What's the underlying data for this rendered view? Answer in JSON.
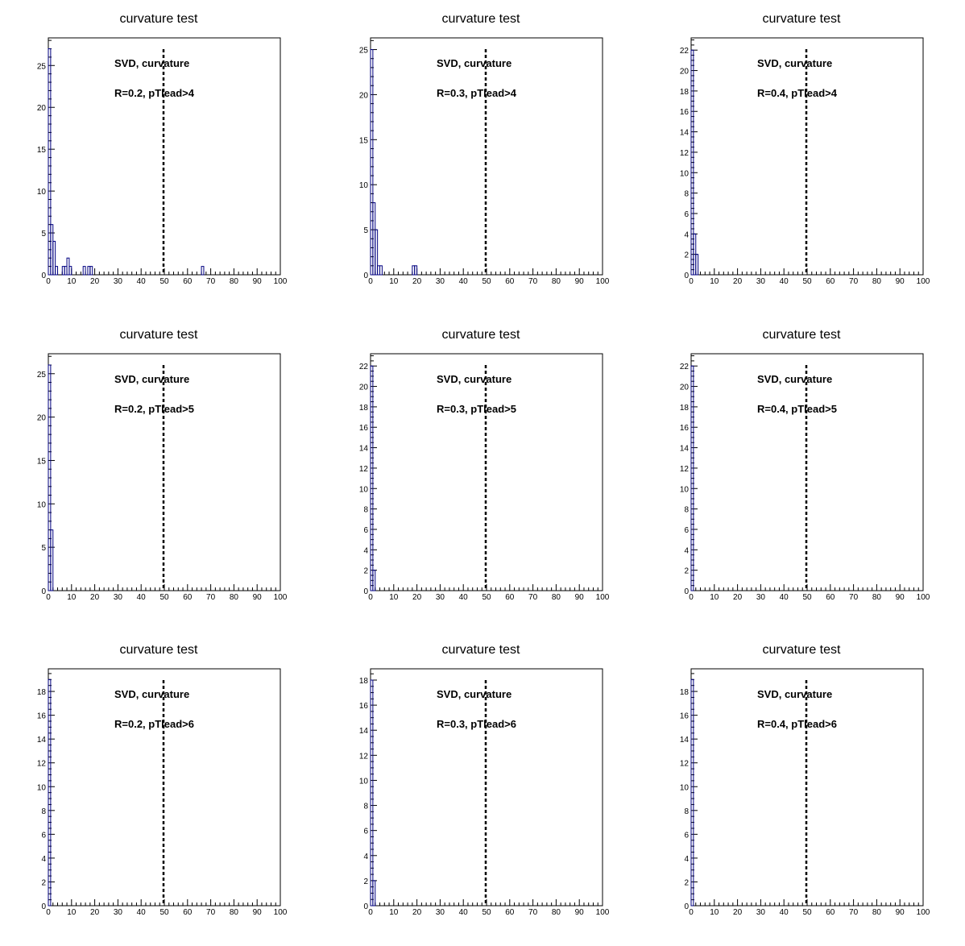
{
  "figure": {
    "panels": [
      {
        "title": "curvature test",
        "label1": "SVD, curvature",
        "label2": "R=0.2, pTlead>4"
      },
      {
        "title": "curvature test",
        "label1": "SVD, curvature",
        "label2": "R=0.3, pTlead>4"
      },
      {
        "title": "curvature test",
        "label1": "SVD, curvature",
        "label2": "R=0.4, pTlead>4"
      },
      {
        "title": "curvature test",
        "label1": "SVD, curvature",
        "label2": "R=0.2, pTlead>5"
      },
      {
        "title": "curvature test",
        "label1": "SVD, curvature",
        "label2": "R=0.3, pTlead>5"
      },
      {
        "title": "curvature test",
        "label1": "SVD, curvature",
        "label2": "R=0.4, pTlead>5"
      },
      {
        "title": "curvature test",
        "label1": "SVD, curvature",
        "label2": "R=0.2, pTlead>6"
      },
      {
        "title": "curvature test",
        "label1": "SVD, curvature",
        "label2": "R=0.3, pTlead>6"
      },
      {
        "title": "curvature test",
        "label1": "SVD, curvature",
        "label2": "R=0.4, pTlead>6"
      }
    ]
  },
  "chart_data": [
    {
      "type": "bar",
      "title": "curvature test",
      "annotations": [
        "SVD, curvature",
        "R=0.2, pTlead>4"
      ],
      "xlim": [
        0,
        100
      ],
      "ylim": [
        0,
        28.3
      ],
      "xticks": [
        0,
        10,
        20,
        30,
        40,
        50,
        60,
        70,
        80,
        90,
        100
      ],
      "yticks": [
        0,
        5,
        10,
        15,
        20,
        25
      ],
      "bin_width": 1,
      "bins": [
        [
          0,
          27
        ],
        [
          1,
          6
        ],
        [
          2,
          4
        ],
        [
          3,
          1
        ],
        [
          6,
          1
        ],
        [
          7,
          1
        ],
        [
          8,
          2
        ],
        [
          9,
          1
        ],
        [
          15,
          1
        ],
        [
          17,
          1
        ],
        [
          18,
          1
        ],
        [
          66,
          1
        ]
      ],
      "reference_line_x": 50,
      "color": "#000080"
    },
    {
      "type": "bar",
      "title": "curvature test",
      "annotations": [
        "SVD, curvature",
        "R=0.3, pTlead>4"
      ],
      "xlim": [
        0,
        100
      ],
      "ylim": [
        0,
        26.3
      ],
      "xticks": [
        0,
        10,
        20,
        30,
        40,
        50,
        60,
        70,
        80,
        90,
        100
      ],
      "yticks": [
        0,
        5,
        10,
        15,
        20,
        25
      ],
      "bin_width": 1,
      "bins": [
        [
          0,
          25
        ],
        [
          1,
          8
        ],
        [
          2,
          5
        ],
        [
          3,
          1
        ],
        [
          4,
          1
        ],
        [
          18,
          1
        ],
        [
          19,
          1
        ]
      ],
      "reference_line_x": 50,
      "color": "#000080"
    },
    {
      "type": "bar",
      "title": "curvature test",
      "annotations": [
        "SVD, curvature",
        "R=0.4, pTlead>4"
      ],
      "xlim": [
        0,
        100
      ],
      "ylim": [
        0,
        23.2
      ],
      "xticks": [
        0,
        10,
        20,
        30,
        40,
        50,
        60,
        70,
        80,
        90,
        100
      ],
      "yticks": [
        0,
        2,
        4,
        6,
        8,
        10,
        12,
        14,
        16,
        18,
        20,
        22
      ],
      "bin_width": 1,
      "bins": [
        [
          0,
          22
        ],
        [
          1,
          4
        ],
        [
          2,
          2
        ]
      ],
      "reference_line_x": 50,
      "color": "#000080"
    },
    {
      "type": "bar",
      "title": "curvature test",
      "annotations": [
        "SVD, curvature",
        "R=0.2, pTlead>5"
      ],
      "xlim": [
        0,
        100
      ],
      "ylim": [
        0,
        27.3
      ],
      "xticks": [
        0,
        10,
        20,
        30,
        40,
        50,
        60,
        70,
        80,
        90,
        100
      ],
      "yticks": [
        0,
        5,
        10,
        15,
        20,
        25
      ],
      "bin_width": 1,
      "bins": [
        [
          0,
          26
        ],
        [
          1,
          7
        ]
      ],
      "reference_line_x": 50,
      "color": "#000080"
    },
    {
      "type": "bar",
      "title": "curvature test",
      "annotations": [
        "SVD, curvature",
        "R=0.3, pTlead>5"
      ],
      "xlim": [
        0,
        100
      ],
      "ylim": [
        0,
        23.2
      ],
      "xticks": [
        0,
        10,
        20,
        30,
        40,
        50,
        60,
        70,
        80,
        90,
        100
      ],
      "yticks": [
        0,
        2,
        4,
        6,
        8,
        10,
        12,
        14,
        16,
        18,
        20,
        22
      ],
      "bin_width": 1,
      "bins": [
        [
          0,
          22
        ],
        [
          1,
          2
        ]
      ],
      "reference_line_x": 50,
      "color": "#000080"
    },
    {
      "type": "bar",
      "title": "curvature test",
      "annotations": [
        "SVD, curvature",
        "R=0.4, pTlead>5"
      ],
      "xlim": [
        0,
        100
      ],
      "ylim": [
        0,
        23.2
      ],
      "xticks": [
        0,
        10,
        20,
        30,
        40,
        50,
        60,
        70,
        80,
        90,
        100
      ],
      "yticks": [
        0,
        2,
        4,
        6,
        8,
        10,
        12,
        14,
        16,
        18,
        20,
        22
      ],
      "bin_width": 1,
      "bins": [
        [
          0,
          22
        ]
      ],
      "reference_line_x": 50,
      "color": "#000080"
    },
    {
      "type": "bar",
      "title": "curvature test",
      "annotations": [
        "SVD, curvature",
        "R=0.2, pTlead>6"
      ],
      "xlim": [
        0,
        100
      ],
      "ylim": [
        0,
        19.9
      ],
      "xticks": [
        0,
        10,
        20,
        30,
        40,
        50,
        60,
        70,
        80,
        90,
        100
      ],
      "yticks": [
        0,
        2,
        4,
        6,
        8,
        10,
        12,
        14,
        16,
        18
      ],
      "bin_width": 1,
      "bins": [
        [
          0,
          19
        ]
      ],
      "reference_line_x": 50,
      "color": "#000080"
    },
    {
      "type": "bar",
      "title": "curvature test",
      "annotations": [
        "SVD, curvature",
        "R=0.3, pTlead>6"
      ],
      "xlim": [
        0,
        100
      ],
      "ylim": [
        0,
        18.9
      ],
      "xticks": [
        0,
        10,
        20,
        30,
        40,
        50,
        60,
        70,
        80,
        90,
        100
      ],
      "yticks": [
        0,
        2,
        4,
        6,
        8,
        10,
        12,
        14,
        16,
        18
      ],
      "bin_width": 1,
      "bins": [
        [
          0,
          18
        ],
        [
          1,
          2
        ]
      ],
      "reference_line_x": 50,
      "color": "#000080"
    },
    {
      "type": "bar",
      "title": "curvature test",
      "annotations": [
        "SVD, curvature",
        "R=0.4, pTlead>6"
      ],
      "xlim": [
        0,
        100
      ],
      "ylim": [
        0,
        19.9
      ],
      "xticks": [
        0,
        10,
        20,
        30,
        40,
        50,
        60,
        70,
        80,
        90,
        100
      ],
      "yticks": [
        0,
        2,
        4,
        6,
        8,
        10,
        12,
        14,
        16,
        18
      ],
      "bin_width": 1,
      "bins": [
        [
          0,
          19
        ]
      ],
      "reference_line_x": 50,
      "color": "#000080"
    }
  ]
}
